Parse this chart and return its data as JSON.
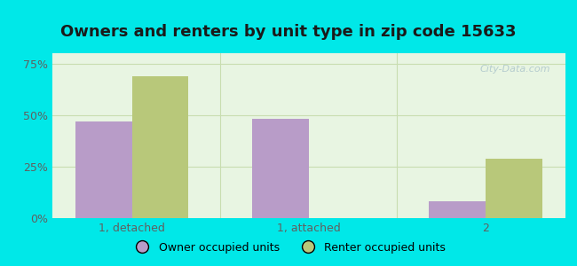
{
  "title": "Owners and renters by unit type in zip code 15633",
  "categories": [
    "1, detached",
    "1, attached",
    "2"
  ],
  "owner_values": [
    47,
    48,
    8
  ],
  "renter_values": [
    69,
    0,
    29
  ],
  "owner_color": "#b89cc8",
  "renter_color": "#b8c87a",
  "bar_width": 0.32,
  "ylim": [
    0,
    80
  ],
  "yticks": [
    0,
    25,
    50,
    75
  ],
  "yticklabels": [
    "0%",
    "25%",
    "50%",
    "75%"
  ],
  "legend_owner": "Owner occupied units",
  "legend_renter": "Renter occupied units",
  "background_outer": "#00e8e8",
  "background_inner": "#e8f5e2",
  "grid_color": "#c8ddb0",
  "title_fontsize": 13,
  "watermark_color": "#b0c8cc",
  "tick_label_color": "#606060"
}
